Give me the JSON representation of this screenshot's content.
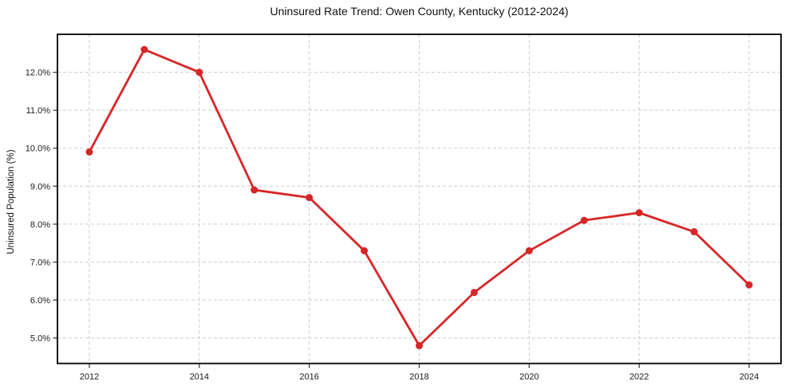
{
  "chart_data": {
    "type": "line",
    "title": "Uninsured Rate Trend: Owen County, Kentucky (2012-2024)",
    "xlabel": "",
    "ylabel": "Uninsured Population (%)",
    "x": [
      2012,
      2013,
      2014,
      2015,
      2016,
      2017,
      2018,
      2019,
      2020,
      2021,
      2022,
      2023,
      2024
    ],
    "values": [
      9.9,
      12.6,
      12.0,
      8.9,
      8.7,
      7.3,
      4.8,
      6.2,
      7.3,
      8.1,
      8.3,
      7.8,
      6.4
    ],
    "xticks": [
      2012,
      2014,
      2016,
      2018,
      2020,
      2022,
      2024
    ],
    "xtick_labels": [
      "2012",
      "2014",
      "2016",
      "2018",
      "2020",
      "2022",
      "2024"
    ],
    "yticks": [
      5,
      6,
      7,
      8,
      9,
      10,
      11,
      12
    ],
    "ytick_labels": [
      "5.0%",
      "6.0%",
      "7.0%",
      "8.0%",
      "9.0%",
      "10.0%",
      "11.0%",
      "12.0%"
    ],
    "xlim": [
      2011.42,
      2024.58
    ],
    "ylim": [
      4.33,
      13.0
    ],
    "grid": true,
    "legend": "none",
    "colors": {
      "line": "#d62728",
      "marker": "#d62728",
      "grid": "#cccccc",
      "spine": "#000000",
      "tick": "#333333",
      "text": "#1a1a1a",
      "background": "#ffffff"
    }
  }
}
